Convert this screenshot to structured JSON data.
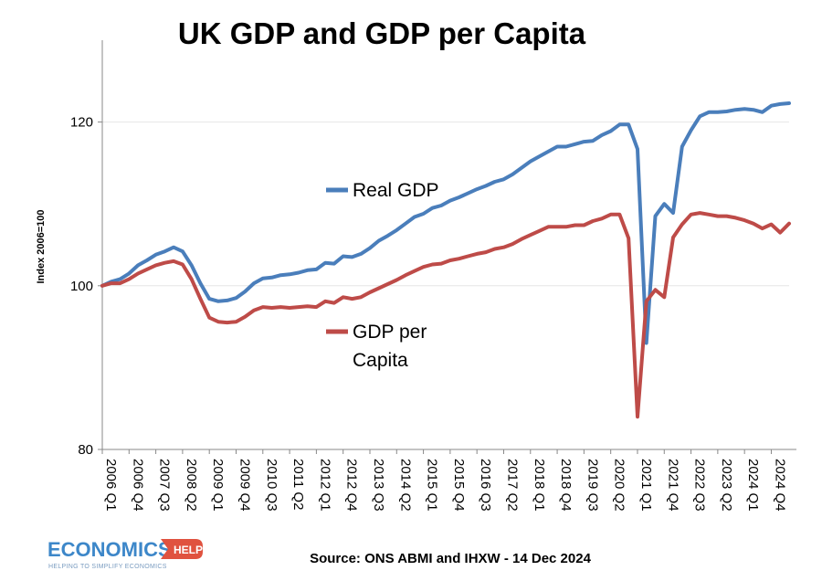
{
  "chart_data": {
    "type": "line",
    "title": "UK GDP and GDP per Capita",
    "ylabel": "Index 2006=100",
    "xlabel": "",
    "ylim": [
      80,
      130
    ],
    "yticks": [
      80,
      100,
      120
    ],
    "grid": true,
    "tick_labels": [
      "2006 Q1",
      "2006 Q4",
      "2007 Q3",
      "2008 Q2",
      "2009 Q1",
      "2009 Q4",
      "2010 Q3",
      "2011 Q2",
      "2012 Q1",
      "2012 Q4",
      "2013 Q3",
      "2014 Q2",
      "2015 Q1",
      "2015 Q4",
      "2016 Q3",
      "2017 Q2",
      "2018 Q1",
      "2018 Q4",
      "2019 Q3",
      "2020 Q2",
      "2021 Q1",
      "2021 Q4",
      "2022 Q3",
      "2023 Q2",
      "2024 Q1",
      "2024 Q4"
    ],
    "series": [
      {
        "name": "Real GDP",
        "color": "#4a7ebb",
        "values": [
          100.0,
          100.5,
          100.8,
          101.5,
          102.5,
          103.1,
          103.8,
          104.2,
          104.7,
          104.2,
          102.5,
          100.3,
          98.4,
          98.1,
          98.2,
          98.5,
          99.3,
          100.3,
          100.9,
          101.0,
          101.3,
          101.4,
          101.6,
          101.9,
          102.0,
          102.8,
          102.7,
          103.6,
          103.5,
          103.9,
          104.6,
          105.5,
          106.1,
          106.8,
          107.6,
          108.4,
          108.8,
          109.5,
          109.8,
          110.4,
          110.8,
          111.3,
          111.8,
          112.2,
          112.7,
          113.0,
          113.6,
          114.4,
          115.2,
          115.8,
          116.4,
          117.0,
          117.0,
          117.3,
          117.6,
          117.7,
          118.4,
          118.9,
          119.7,
          119.7,
          116.7,
          93.0,
          108.5,
          110.0,
          108.9,
          117.0,
          119.0,
          120.7,
          121.2,
          121.2,
          121.3,
          121.5,
          121.6,
          121.5,
          121.2,
          122.0,
          122.2,
          122.3
        ],
        "label_lines": [
          "Real GDP"
        ]
      },
      {
        "name": "GDP per Capita",
        "color": "#be4b48",
        "values": [
          100.0,
          100.3,
          100.3,
          100.8,
          101.5,
          102.0,
          102.5,
          102.8,
          103.0,
          102.6,
          100.8,
          98.4,
          96.1,
          95.6,
          95.5,
          95.6,
          96.2,
          97.0,
          97.4,
          97.3,
          97.4,
          97.3,
          97.4,
          97.5,
          97.4,
          98.1,
          97.9,
          98.6,
          98.4,
          98.6,
          99.2,
          99.7,
          100.2,
          100.7,
          101.3,
          101.8,
          102.3,
          102.6,
          102.7,
          103.1,
          103.3,
          103.6,
          103.9,
          104.1,
          104.5,
          104.7,
          105.1,
          105.7,
          106.2,
          106.7,
          107.2,
          107.2,
          107.2,
          107.4,
          107.4,
          107.9,
          108.2,
          108.7,
          108.7,
          105.8,
          84.0,
          98.1,
          99.5,
          98.6,
          105.9,
          107.5,
          108.7,
          108.9,
          108.7,
          108.5,
          108.5,
          108.3,
          108.0,
          107.6,
          107.0,
          107.5,
          106.5,
          107.6
        ],
        "label_lines": [
          "GDP per",
          "Capita"
        ]
      }
    ],
    "annotations": [
      {
        "text": "Source: ONS ABMI and IHXW - 14 Dec 2024"
      }
    ]
  },
  "branding": {
    "logo_text": "ECONOMICS",
    "logo_badge": "HELP",
    "logo_tagline": "HELPING TO SIMPLIFY ECONOMICS",
    "accent": "#3d87c9",
    "badge_color": "#e0523f"
  }
}
